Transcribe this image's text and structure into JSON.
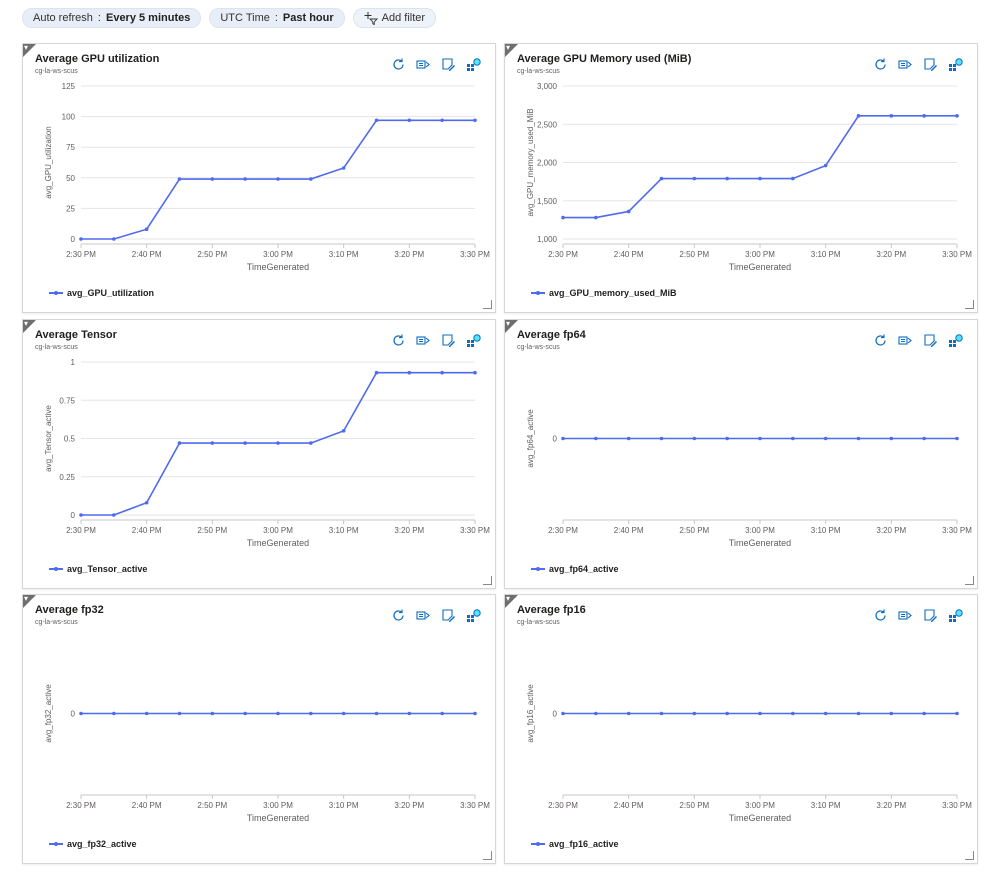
{
  "filters": {
    "auto_refresh": {
      "label": "Auto refresh",
      "value": "Every 5 minutes"
    },
    "time": {
      "label": "UTC Time",
      "value": "Past hour"
    },
    "add_filter": "Add filter"
  },
  "colors": {
    "series": "#4f6bed",
    "grid": "#e5e5e5",
    "axis_text": "#605e5c"
  },
  "tiles": [
    {
      "title": "Average GPU utilization",
      "subtitle": "cg-la-ws-scus",
      "legend": "avg_GPU_utilization"
    },
    {
      "title": "Average GPU Memory used (MiB)",
      "subtitle": "cg-la-ws-scus",
      "legend": "avg_GPU_memory_used_MiB"
    },
    {
      "title": "Average Tensor",
      "subtitle": "cg-la-ws-scus",
      "legend": "avg_Tensor_active"
    },
    {
      "title": "Average fp64",
      "subtitle": "cg-la-ws-scus",
      "legend": "avg_fp64_active"
    },
    {
      "title": "Average fp32",
      "subtitle": "cg-la-ws-scus",
      "legend": "avg_fp32_active"
    },
    {
      "title": "Average fp16",
      "subtitle": "cg-la-ws-scus",
      "legend": "avg_fp16_active"
    }
  ],
  "chart_data": [
    {
      "type": "line",
      "x": [
        "2:30 PM",
        "2:35 PM",
        "2:40 PM",
        "2:45 PM",
        "2:50 PM",
        "2:55 PM",
        "3:00 PM",
        "3:05 PM",
        "3:10 PM",
        "3:15 PM",
        "3:20 PM",
        "3:25 PM",
        "3:30 PM"
      ],
      "x_ticks": [
        "2:30 PM",
        "2:40 PM",
        "2:50 PM",
        "3:00 PM",
        "3:10 PM",
        "3:20 PM",
        "3:30 PM"
      ],
      "series": [
        {
          "name": "avg_GPU_utilization",
          "values": [
            0,
            0,
            8,
            49,
            49,
            49,
            49,
            49,
            58,
            97,
            97,
            97,
            97
          ]
        }
      ],
      "xlabel": "TimeGenerated",
      "ylabel": "avg_GPU_utilization",
      "ylim": [
        0,
        125
      ],
      "y_ticks": [
        0,
        25,
        50,
        75,
        100,
        125
      ],
      "y_tick_labels": [
        "0",
        "25",
        "50",
        "75",
        "100",
        "125"
      ],
      "grid": true
    },
    {
      "type": "line",
      "x": [
        "2:30 PM",
        "2:35 PM",
        "2:40 PM",
        "2:45 PM",
        "2:50 PM",
        "2:55 PM",
        "3:00 PM",
        "3:05 PM",
        "3:10 PM",
        "3:15 PM",
        "3:20 PM",
        "3:25 PM",
        "3:30 PM"
      ],
      "x_ticks": [
        "2:30 PM",
        "2:40 PM",
        "2:50 PM",
        "3:00 PM",
        "3:10 PM",
        "3:20 PM",
        "3:30 PM"
      ],
      "series": [
        {
          "name": "avg_GPU_memory_used_MiB",
          "values": [
            1280,
            1280,
            1360,
            1790,
            1790,
            1790,
            1790,
            1790,
            1960,
            2610,
            2610,
            2610,
            2610
          ]
        }
      ],
      "xlabel": "TimeGenerated",
      "ylabel": "avg_GPU_memory_used_MiB",
      "ylim": [
        1000,
        3000
      ],
      "y_ticks": [
        1000,
        1500,
        2000,
        2500,
        3000
      ],
      "y_tick_labels": [
        "1,000",
        "1,500",
        "2,000",
        "2,500",
        "3,000"
      ],
      "grid": true
    },
    {
      "type": "line",
      "x": [
        "2:30 PM",
        "2:35 PM",
        "2:40 PM",
        "2:45 PM",
        "2:50 PM",
        "2:55 PM",
        "3:00 PM",
        "3:05 PM",
        "3:10 PM",
        "3:15 PM",
        "3:20 PM",
        "3:25 PM",
        "3:30 PM"
      ],
      "x_ticks": [
        "2:30 PM",
        "2:40 PM",
        "2:50 PM",
        "3:00 PM",
        "3:10 PM",
        "3:20 PM",
        "3:30 PM"
      ],
      "series": [
        {
          "name": "avg_Tensor_active",
          "values": [
            0,
            0,
            0.08,
            0.47,
            0.47,
            0.47,
            0.47,
            0.47,
            0.55,
            0.93,
            0.93,
            0.93,
            0.93
          ]
        }
      ],
      "xlabel": "TimeGenerated",
      "ylabel": "avg_Tensor_active",
      "ylim": [
        0,
        1
      ],
      "y_ticks": [
        0,
        0.25,
        0.5,
        0.75,
        1
      ],
      "y_tick_labels": [
        "0",
        "0.25",
        "0.5",
        "0.75",
        "1"
      ],
      "grid": true
    },
    {
      "type": "line",
      "x": [
        "2:30 PM",
        "2:35 PM",
        "2:40 PM",
        "2:45 PM",
        "2:50 PM",
        "2:55 PM",
        "3:00 PM",
        "3:05 PM",
        "3:10 PM",
        "3:15 PM",
        "3:20 PM",
        "3:25 PM",
        "3:30 PM"
      ],
      "x_ticks": [
        "2:30 PM",
        "2:40 PM",
        "2:50 PM",
        "3:00 PM",
        "3:10 PM",
        "3:20 PM",
        "3:30 PM"
      ],
      "series": [
        {
          "name": "avg_fp64_active",
          "values": [
            0,
            0,
            0,
            0,
            0,
            0,
            0,
            0,
            0,
            0,
            0,
            0,
            0
          ]
        }
      ],
      "xlabel": "TimeGenerated",
      "ylabel": "avg_fp64_active",
      "ylim": [
        -1,
        1
      ],
      "y_ticks": [
        0
      ],
      "y_tick_labels": [
        "0"
      ],
      "grid": false
    },
    {
      "type": "line",
      "x": [
        "2:30 PM",
        "2:35 PM",
        "2:40 PM",
        "2:45 PM",
        "2:50 PM",
        "2:55 PM",
        "3:00 PM",
        "3:05 PM",
        "3:10 PM",
        "3:15 PM",
        "3:20 PM",
        "3:25 PM",
        "3:30 PM"
      ],
      "x_ticks": [
        "2:30 PM",
        "2:40 PM",
        "2:50 PM",
        "3:00 PM",
        "3:10 PM",
        "3:20 PM",
        "3:30 PM"
      ],
      "series": [
        {
          "name": "avg_fp32_active",
          "values": [
            0,
            0,
            0,
            0,
            0,
            0,
            0,
            0,
            0,
            0,
            0,
            0,
            0
          ]
        }
      ],
      "xlabel": "TimeGenerated",
      "ylabel": "avg_fp32_active",
      "ylim": [
        -1,
        1
      ],
      "y_ticks": [
        0
      ],
      "y_tick_labels": [
        "0"
      ],
      "grid": false
    },
    {
      "type": "line",
      "x": [
        "2:30 PM",
        "2:35 PM",
        "2:40 PM",
        "2:45 PM",
        "2:50 PM",
        "2:55 PM",
        "3:00 PM",
        "3:05 PM",
        "3:10 PM",
        "3:15 PM",
        "3:20 PM",
        "3:25 PM",
        "3:30 PM"
      ],
      "x_ticks": [
        "2:30 PM",
        "2:40 PM",
        "2:50 PM",
        "3:00 PM",
        "3:10 PM",
        "3:20 PM",
        "3:30 PM"
      ],
      "series": [
        {
          "name": "avg_fp16_active",
          "values": [
            0,
            0,
            0,
            0,
            0,
            0,
            0,
            0,
            0,
            0,
            0,
            0,
            0
          ]
        }
      ],
      "xlabel": "TimeGenerated",
      "ylabel": "avg_fp16_active",
      "ylim": [
        -1,
        1
      ],
      "y_ticks": [
        0
      ],
      "y_tick_labels": [
        "0"
      ],
      "grid": false
    }
  ]
}
